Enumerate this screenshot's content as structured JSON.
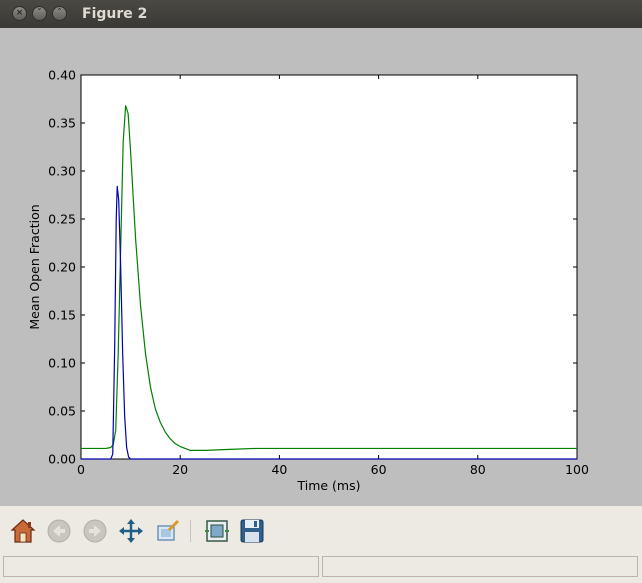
{
  "window": {
    "title": "Figure 2",
    "buttons": [
      {
        "name": "close-button",
        "glyph": "×"
      },
      {
        "name": "minimize-button",
        "glyph": "˅"
      },
      {
        "name": "maximize-button",
        "glyph": "˄"
      }
    ]
  },
  "toolbar": {
    "buttons": [
      {
        "name": "home-button",
        "icon": "home-icon",
        "enabled": true
      },
      {
        "name": "back-button",
        "icon": "back-arrow-icon",
        "enabled": false
      },
      {
        "name": "forward-button",
        "icon": "forward-arrow-icon",
        "enabled": false
      },
      {
        "name": "pan-button",
        "icon": "pan-move-icon",
        "enabled": true
      },
      {
        "name": "zoom-button",
        "icon": "zoom-rect-icon",
        "enabled": true
      },
      {
        "name": "subplots-button",
        "icon": "subplots-icon",
        "enabled": true
      },
      {
        "name": "save-button",
        "icon": "save-floppy-icon",
        "enabled": true
      }
    ]
  },
  "statusbar": {
    "left": "",
    "right": ""
  },
  "chart_data": {
    "type": "line",
    "xlabel": "Time (ms)",
    "ylabel": "Mean Open Fraction",
    "xlim": [
      0,
      100
    ],
    "ylim": [
      0,
      0.4
    ],
    "xticks": [
      "0",
      "20",
      "40",
      "60",
      "80",
      "100"
    ],
    "yticks": [
      "0.00",
      "0.05",
      "0.10",
      "0.15",
      "0.20",
      "0.25",
      "0.30",
      "0.35",
      "0.40"
    ],
    "grid": false,
    "colors": {
      "blue": "#0000b0",
      "green": "#007f00"
    },
    "series": [
      {
        "color": "#007f00",
        "x": [
          0,
          5,
          6,
          6.5,
          7,
          7.5,
          8,
          8.5,
          9,
          9.5,
          10,
          11,
          12,
          13,
          14,
          15,
          16,
          17,
          18,
          19,
          20,
          22,
          25,
          30,
          35,
          40,
          60,
          80,
          100
        ],
        "y": [
          0.011,
          0.011,
          0.012,
          0.015,
          0.03,
          0.11,
          0.22,
          0.33,
          0.368,
          0.36,
          0.32,
          0.23,
          0.16,
          0.11,
          0.075,
          0.052,
          0.038,
          0.028,
          0.021,
          0.016,
          0.013,
          0.009,
          0.009,
          0.01,
          0.011,
          0.011,
          0.011,
          0.011,
          0.011
        ]
      },
      {
        "color": "#0000b0",
        "x": [
          0,
          6,
          6.4,
          6.8,
          7.1,
          7.3,
          7.6,
          8,
          8.4,
          8.8,
          9.2,
          9.6,
          10,
          20,
          40,
          60,
          80,
          100
        ],
        "y": [
          0,
          0,
          0.005,
          0.12,
          0.25,
          0.284,
          0.27,
          0.2,
          0.11,
          0.045,
          0.012,
          0.002,
          0,
          0,
          0,
          0,
          0,
          0
        ]
      }
    ]
  }
}
